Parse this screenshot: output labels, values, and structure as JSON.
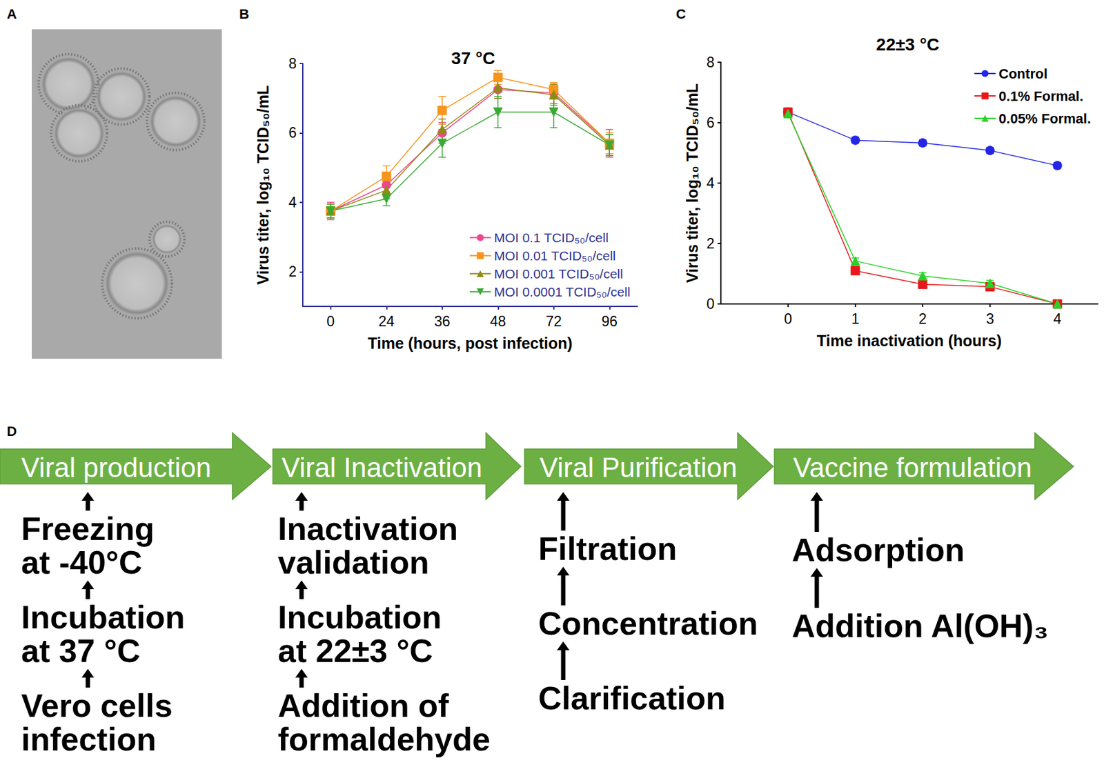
{
  "panel_labels": [
    "A",
    "B",
    "C",
    "D"
  ],
  "chart_data": [
    {
      "type": "line",
      "title": "37 °C",
      "x_label": "Time (hours, post infection)",
      "y_label": "Virus titer, log₁₀ TCID₅₀/mL",
      "categories": [
        "0",
        "24",
        "36",
        "48",
        "72",
        "96"
      ],
      "ylim": [
        1,
        8
      ],
      "yticks": [
        2,
        4,
        6,
        8
      ],
      "grid": false,
      "legend": "lower right",
      "series": [
        {
          "name": "MOI 0.1 TCID₅₀/cell",
          "color": "#f0468c",
          "marker": "circle",
          "values": [
            3.75,
            4.5,
            6.0,
            7.25,
            7.15,
            5.7
          ],
          "errors": [
            0.25,
            0.25,
            0.3,
            0.25,
            0.3,
            0.4
          ]
        },
        {
          "name": "MOI 0.01 TCID₅₀/cell",
          "color": "#f7941d",
          "marker": "square",
          "values": [
            3.75,
            4.75,
            6.65,
            7.6,
            7.25,
            5.7
          ],
          "errors": [
            0.2,
            0.3,
            0.4,
            0.2,
            0.2,
            0.3
          ]
        },
        {
          "name": "MOI 0.001 TCID₅₀/cell",
          "color": "#8c8c14",
          "marker": "triangle",
          "values": [
            3.75,
            4.35,
            6.1,
            7.3,
            7.1,
            5.65
          ],
          "errors": [
            0.2,
            0.25,
            0.3,
            0.3,
            0.3,
            0.3
          ]
        },
        {
          "name": "MOI 0.0001 TCID₅₀/cell",
          "color": "#3aaa35",
          "marker": "triangle_down",
          "values": [
            3.75,
            4.1,
            5.7,
            6.6,
            6.6,
            5.65
          ],
          "errors": [
            0.2,
            0.2,
            0.4,
            0.45,
            0.45,
            0.3
          ]
        }
      ]
    },
    {
      "type": "line",
      "title": "22±3 °C",
      "x_label": "Time inactivation (hours)",
      "y_label": "Virus titer, log₁₀ TCID₅₀/mL",
      "x": [
        0,
        1,
        2,
        3,
        4
      ],
      "xlim": [
        -1,
        4.6
      ],
      "xticks": [
        0,
        1,
        2,
        3,
        4
      ],
      "ylim": [
        0,
        8
      ],
      "yticks": [
        0,
        2,
        4,
        6,
        8
      ],
      "grid": false,
      "legend": "upper right",
      "series": [
        {
          "name": "Control",
          "color": "#2525e6",
          "marker": "circle",
          "values": [
            6.35,
            5.42,
            5.33,
            5.08,
            4.58
          ],
          "errors": [
            0.1,
            0.1,
            0.1,
            0.1,
            0.1
          ]
        },
        {
          "name": "0.1% Formal.",
          "color": "#e8171a",
          "marker": "square",
          "values": [
            6.35,
            1.1,
            0.65,
            0.57,
            0.0
          ],
          "errors": [
            0.05,
            0.1,
            0.1,
            0.1,
            0.0
          ]
        },
        {
          "name": "0.05% Formal.",
          "color": "#28d328",
          "marker": "triangle",
          "values": [
            6.3,
            1.42,
            0.93,
            0.68,
            0.0
          ],
          "errors": [
            0.05,
            0.1,
            0.1,
            0.1,
            0.0
          ]
        }
      ]
    }
  ],
  "diagram": {
    "steps": [
      {
        "title": "Viral production",
        "items": [
          "Vero cells\ninfection",
          "Incubation\nat 37 °C",
          "Freezing\nat -40°C"
        ]
      },
      {
        "title": "Viral Inactivation",
        "items": [
          "Addition of\nformaldehyde",
          "Incubation\nat 22±3 °C",
          "Inactivation\nvalidation"
        ]
      },
      {
        "title": "Viral Purification",
        "items": [
          "Clarification",
          "Concentration",
          "Filtration"
        ]
      },
      {
        "title": "Vaccine formulation",
        "items": [
          "Addition Al(OH)₃",
          "Adsorption"
        ]
      }
    ]
  }
}
